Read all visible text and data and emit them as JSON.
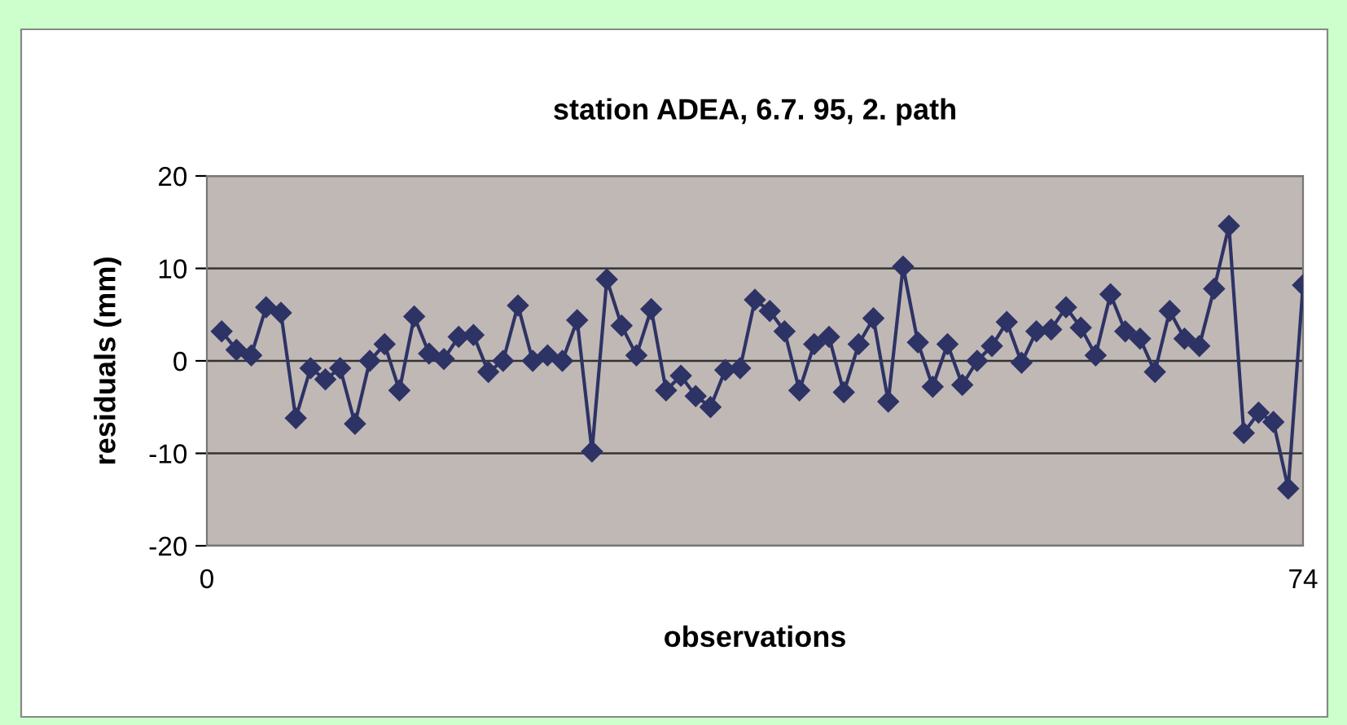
{
  "chart_data": {
    "type": "line",
    "title": "station ADEA, 6.7. 95, 2. path",
    "xlabel": "observations",
    "ylabel": "residuals (mm)",
    "x": [
      1,
      2,
      3,
      4,
      5,
      6,
      7,
      8,
      9,
      10,
      11,
      12,
      13,
      14,
      15,
      16,
      17,
      18,
      19,
      20,
      21,
      22,
      23,
      24,
      25,
      26,
      27,
      28,
      29,
      30,
      31,
      32,
      33,
      34,
      35,
      36,
      37,
      38,
      39,
      40,
      41,
      42,
      43,
      44,
      45,
      46,
      47,
      48,
      49,
      50,
      51,
      52,
      53,
      54,
      55,
      56,
      57,
      58,
      59,
      60,
      61,
      62,
      63,
      64,
      65,
      66,
      67,
      68,
      69,
      70,
      71,
      72,
      73,
      74
    ],
    "series": [
      {
        "color": "#2e3366",
        "values": [
          3.2,
          1.2,
          0.6,
          5.8,
          5.2,
          -6.2,
          -0.8,
          -2,
          -0.8,
          -6.8,
          0,
          1.8,
          -3.2,
          4.8,
          0.8,
          0.2,
          2.6,
          2.8,
          -1.2,
          0,
          6,
          0,
          0.6,
          0,
          4.4,
          -9.8,
          8.8,
          3.8,
          0.6,
          5.6,
          -3.2,
          -1.6,
          -3.8,
          -5,
          -1,
          -0.8,
          6.6,
          5.4,
          3.2,
          -3.2,
          1.8,
          2.6,
          -3.4,
          1.8,
          4.6,
          -4.4,
          10.2,
          2,
          -2.8,
          1.8,
          -2.6,
          0,
          1.6,
          4.2,
          -0.2,
          3.2,
          3.4,
          5.8,
          3.6,
          0.6,
          7.2,
          3.2,
          2.4,
          -1.2,
          5.4,
          2.4,
          1.6,
          7.8,
          14.6,
          -7.8,
          -5.6,
          -6.6,
          -13.8,
          8.2
        ]
      }
    ],
    "xlim": [
      0,
      74
    ],
    "xticks": [
      0,
      74
    ],
    "ylim": [
      -20,
      20
    ],
    "yticks": [
      -20,
      -10,
      0,
      10,
      20
    ],
    "grid": "y",
    "marker": "diamond",
    "line_style": "solid",
    "legend": false
  }
}
